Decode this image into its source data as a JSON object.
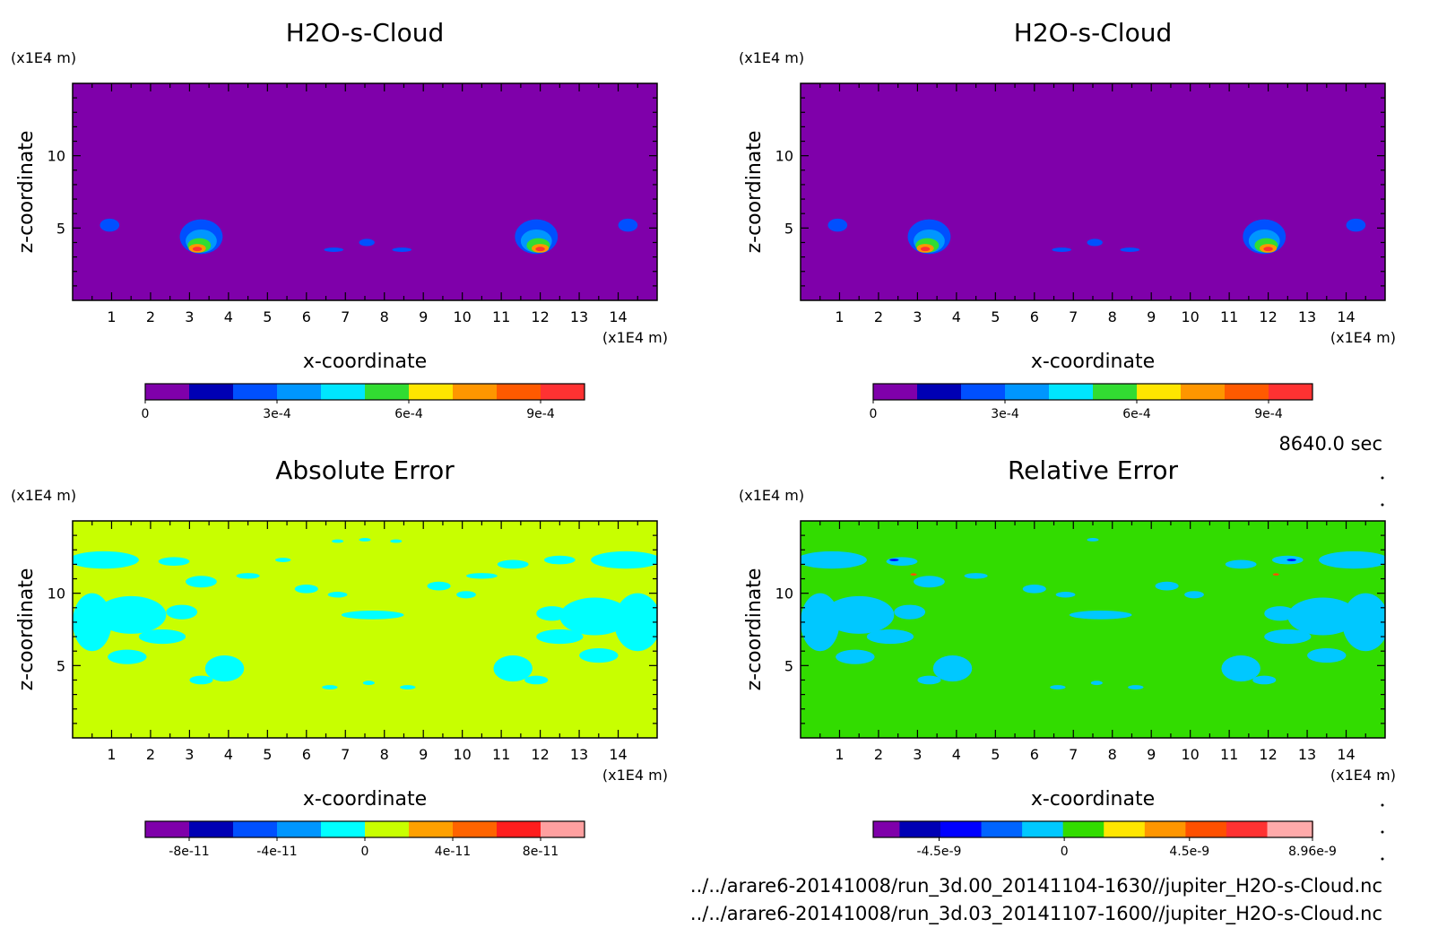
{
  "time_label": "8640.0 sec",
  "files": [
    "../../arare6-20141008/run_3d.00_20141104-1630//jupiter_H2O-s-Cloud.nc",
    "../../arare6-20141008/run_3d.03_20141107-1600//jupiter_H2O-s-Cloud.nc"
  ],
  "chart_data": [
    {
      "type": "heatmap",
      "title": "H2O-s-Cloud",
      "xlabel": "x-coordinate",
      "ylabel": "z-coordinate",
      "x_unit": "(x1E4 m)",
      "y_unit": "(x1E4 m)",
      "xlim": [
        0,
        15
      ],
      "ylim": [
        0,
        15
      ],
      "x_ticks": [
        1,
        2,
        3,
        4,
        5,
        6,
        7,
        8,
        9,
        10,
        11,
        12,
        13,
        14
      ],
      "y_ticks": [
        5,
        10
      ],
      "background_color": "#7f00aa",
      "colorbar": {
        "colors": [
          "#7f00aa",
          "#0000b4",
          "#0050ff",
          "#0096ff",
          "#00e6ff",
          "#32dc32",
          "#ffe600",
          "#ff9600",
          "#ff5a00",
          "#ff3232"
        ],
        "tick_labels": [
          "0",
          "3e-4",
          "6e-4",
          "9e-4"
        ],
        "tick_positions": [
          0,
          3,
          6,
          9
        ]
      },
      "features": [
        {
          "x": 0.95,
          "z": 5.2,
          "rx": 0.25,
          "rz": 0.45,
          "color": "#0050ff"
        },
        {
          "x": 14.25,
          "z": 5.2,
          "rx": 0.25,
          "rz": 0.45,
          "color": "#0050ff"
        },
        {
          "x": 6.7,
          "z": 3.5,
          "rx": 0.25,
          "rz": 0.15,
          "color": "#0050ff"
        },
        {
          "x": 7.55,
          "z": 4.0,
          "rx": 0.2,
          "rz": 0.25,
          "color": "#0050ff"
        },
        {
          "x": 8.45,
          "z": 3.5,
          "rx": 0.25,
          "rz": 0.15,
          "color": "#0050ff"
        },
        {
          "x": 3.3,
          "z": 4.4,
          "rx": 0.55,
          "rz": 1.2,
          "color": "#0050ff"
        },
        {
          "x": 3.3,
          "z": 4.1,
          "rx": 0.4,
          "rz": 0.8,
          "color": "#0096ff"
        },
        {
          "x": 3.25,
          "z": 3.8,
          "rx": 0.3,
          "rz": 0.5,
          "color": "#32dc32"
        },
        {
          "x": 3.2,
          "z": 3.6,
          "rx": 0.22,
          "rz": 0.3,
          "color": "#ff9600"
        },
        {
          "x": 3.2,
          "z": 3.55,
          "rx": 0.12,
          "rz": 0.15,
          "color": "#ff3232"
        },
        {
          "x": 11.9,
          "z": 4.4,
          "rx": 0.55,
          "rz": 1.2,
          "color": "#0050ff"
        },
        {
          "x": 11.9,
          "z": 4.1,
          "rx": 0.4,
          "rz": 0.8,
          "color": "#0096ff"
        },
        {
          "x": 11.95,
          "z": 3.8,
          "rx": 0.3,
          "rz": 0.5,
          "color": "#32dc32"
        },
        {
          "x": 12.0,
          "z": 3.6,
          "rx": 0.22,
          "rz": 0.3,
          "color": "#ff9600"
        },
        {
          "x": 12.0,
          "z": 3.55,
          "rx": 0.12,
          "rz": 0.15,
          "color": "#ff3232"
        }
      ]
    },
    {
      "type": "heatmap",
      "title": "H2O-s-Cloud",
      "xlabel": "x-coordinate",
      "ylabel": "z-coordinate",
      "x_unit": "(x1E4 m)",
      "y_unit": "(x1E4 m)",
      "xlim": [
        0,
        15
      ],
      "ylim": [
        0,
        15
      ],
      "x_ticks": [
        1,
        2,
        3,
        4,
        5,
        6,
        7,
        8,
        9,
        10,
        11,
        12,
        13,
        14
      ],
      "y_ticks": [
        5,
        10
      ],
      "background_color": "#7f00aa",
      "colorbar": {
        "colors": [
          "#7f00aa",
          "#0000b4",
          "#0050ff",
          "#0096ff",
          "#00e6ff",
          "#32dc32",
          "#ffe600",
          "#ff9600",
          "#ff5a00",
          "#ff3232"
        ],
        "tick_labels": [
          "0",
          "3e-4",
          "6e-4",
          "9e-4"
        ],
        "tick_positions": [
          0,
          3,
          6,
          9
        ]
      },
      "features": [
        {
          "x": 0.95,
          "z": 5.2,
          "rx": 0.25,
          "rz": 0.45,
          "color": "#0050ff"
        },
        {
          "x": 14.25,
          "z": 5.2,
          "rx": 0.25,
          "rz": 0.45,
          "color": "#0050ff"
        },
        {
          "x": 6.7,
          "z": 3.5,
          "rx": 0.25,
          "rz": 0.15,
          "color": "#0050ff"
        },
        {
          "x": 7.55,
          "z": 4.0,
          "rx": 0.2,
          "rz": 0.25,
          "color": "#0050ff"
        },
        {
          "x": 8.45,
          "z": 3.5,
          "rx": 0.25,
          "rz": 0.15,
          "color": "#0050ff"
        },
        {
          "x": 3.3,
          "z": 4.4,
          "rx": 0.55,
          "rz": 1.2,
          "color": "#0050ff"
        },
        {
          "x": 3.3,
          "z": 4.1,
          "rx": 0.4,
          "rz": 0.8,
          "color": "#0096ff"
        },
        {
          "x": 3.25,
          "z": 3.8,
          "rx": 0.3,
          "rz": 0.5,
          "color": "#32dc32"
        },
        {
          "x": 3.2,
          "z": 3.6,
          "rx": 0.22,
          "rz": 0.3,
          "color": "#ff9600"
        },
        {
          "x": 3.2,
          "z": 3.55,
          "rx": 0.12,
          "rz": 0.15,
          "color": "#ff3232"
        },
        {
          "x": 11.9,
          "z": 4.4,
          "rx": 0.55,
          "rz": 1.2,
          "color": "#0050ff"
        },
        {
          "x": 11.9,
          "z": 4.1,
          "rx": 0.4,
          "rz": 0.8,
          "color": "#0096ff"
        },
        {
          "x": 11.95,
          "z": 3.8,
          "rx": 0.3,
          "rz": 0.5,
          "color": "#32dc32"
        },
        {
          "x": 12.0,
          "z": 3.6,
          "rx": 0.22,
          "rz": 0.3,
          "color": "#ff9600"
        },
        {
          "x": 12.0,
          "z": 3.55,
          "rx": 0.12,
          "rz": 0.15,
          "color": "#ff3232"
        }
      ]
    },
    {
      "type": "heatmap",
      "title": "Absolute Error",
      "xlabel": "x-coordinate",
      "ylabel": "z-coordinate",
      "x_unit": "(x1E4 m)",
      "y_unit": "(x1E4 m)",
      "xlim": [
        0,
        15
      ],
      "ylim": [
        0,
        15
      ],
      "x_ticks": [
        1,
        2,
        3,
        4,
        5,
        6,
        7,
        8,
        9,
        10,
        11,
        12,
        13,
        14
      ],
      "y_ticks": [
        5,
        10
      ],
      "background_color": "#c8ff00",
      "colorbar": {
        "colors": [
          "#7f00aa",
          "#0000b4",
          "#0050ff",
          "#0096ff",
          "#00ffff",
          "#c8ff00",
          "#ffa000",
          "#ff6400",
          "#ff1e1e",
          "#ffa0a0"
        ],
        "tick_labels": [
          "-8e-11",
          "-4e-11",
          "0",
          "4e-11",
          "8e-11"
        ],
        "tick_positions": [
          1,
          3,
          5,
          7,
          9
        ]
      },
      "features": [
        {
          "x": 0.8,
          "z": 12.3,
          "rx": 0.9,
          "rz": 0.6,
          "color": "#00ffff"
        },
        {
          "x": 0.5,
          "z": 8.0,
          "rx": 0.5,
          "rz": 2.0,
          "color": "#00ffff"
        },
        {
          "x": 1.5,
          "z": 8.5,
          "rx": 0.9,
          "rz": 1.3,
          "color": "#00ffff"
        },
        {
          "x": 2.8,
          "z": 8.7,
          "rx": 0.4,
          "rz": 0.5,
          "color": "#00ffff"
        },
        {
          "x": 2.3,
          "z": 7.0,
          "rx": 0.6,
          "rz": 0.5,
          "color": "#00ffff"
        },
        {
          "x": 1.4,
          "z": 5.6,
          "rx": 0.5,
          "rz": 0.5,
          "color": "#00ffff"
        },
        {
          "x": 3.9,
          "z": 4.8,
          "rx": 0.5,
          "rz": 0.9,
          "color": "#00ffff"
        },
        {
          "x": 3.3,
          "z": 4.0,
          "rx": 0.3,
          "rz": 0.3,
          "color": "#00ffff"
        },
        {
          "x": 3.3,
          "z": 10.8,
          "rx": 0.4,
          "rz": 0.4,
          "color": "#00ffff"
        },
        {
          "x": 4.5,
          "z": 11.2,
          "rx": 0.3,
          "rz": 0.2,
          "color": "#00ffff"
        },
        {
          "x": 2.6,
          "z": 12.2,
          "rx": 0.4,
          "rz": 0.3,
          "color": "#00ffff"
        },
        {
          "x": 5.4,
          "z": 12.3,
          "rx": 0.2,
          "rz": 0.15,
          "color": "#00ffff"
        },
        {
          "x": 6.0,
          "z": 10.3,
          "rx": 0.3,
          "rz": 0.3,
          "color": "#00ffff"
        },
        {
          "x": 6.8,
          "z": 9.9,
          "rx": 0.25,
          "rz": 0.2,
          "color": "#00ffff"
        },
        {
          "x": 7.7,
          "z": 8.5,
          "rx": 0.8,
          "rz": 0.3,
          "color": "#00ffff"
        },
        {
          "x": 6.6,
          "z": 3.5,
          "rx": 0.2,
          "rz": 0.15,
          "color": "#00ffff"
        },
        {
          "x": 7.6,
          "z": 3.8,
          "rx": 0.15,
          "rz": 0.15,
          "color": "#00ffff"
        },
        {
          "x": 8.6,
          "z": 3.5,
          "rx": 0.2,
          "rz": 0.15,
          "color": "#00ffff"
        },
        {
          "x": 6.8,
          "z": 13.6,
          "rx": 0.15,
          "rz": 0.12,
          "color": "#00ffff"
        },
        {
          "x": 7.5,
          "z": 13.7,
          "rx": 0.15,
          "rz": 0.12,
          "color": "#00ffff"
        },
        {
          "x": 8.3,
          "z": 13.6,
          "rx": 0.15,
          "rz": 0.12,
          "color": "#00ffff"
        },
        {
          "x": 9.4,
          "z": 10.5,
          "rx": 0.3,
          "rz": 0.3,
          "color": "#00ffff"
        },
        {
          "x": 10.1,
          "z": 9.9,
          "rx": 0.25,
          "rz": 0.25,
          "color": "#00ffff"
        },
        {
          "x": 11.3,
          "z": 12.0,
          "rx": 0.4,
          "rz": 0.3,
          "color": "#00ffff"
        },
        {
          "x": 10.5,
          "z": 11.2,
          "rx": 0.4,
          "rz": 0.2,
          "color": "#00ffff"
        },
        {
          "x": 12.5,
          "z": 12.3,
          "rx": 0.4,
          "rz": 0.3,
          "color": "#00ffff"
        },
        {
          "x": 14.2,
          "z": 12.3,
          "rx": 0.9,
          "rz": 0.6,
          "color": "#00ffff"
        },
        {
          "x": 14.5,
          "z": 8.0,
          "rx": 0.6,
          "rz": 2.0,
          "color": "#00ffff"
        },
        {
          "x": 13.4,
          "z": 8.4,
          "rx": 0.9,
          "rz": 1.3,
          "color": "#00ffff"
        },
        {
          "x": 12.3,
          "z": 8.6,
          "rx": 0.4,
          "rz": 0.5,
          "color": "#00ffff"
        },
        {
          "x": 12.5,
          "z": 7.0,
          "rx": 0.6,
          "rz": 0.5,
          "color": "#00ffff"
        },
        {
          "x": 13.5,
          "z": 5.7,
          "rx": 0.5,
          "rz": 0.5,
          "color": "#00ffff"
        },
        {
          "x": 11.3,
          "z": 4.8,
          "rx": 0.5,
          "rz": 0.9,
          "color": "#00ffff"
        },
        {
          "x": 11.9,
          "z": 4.0,
          "rx": 0.3,
          "rz": 0.3,
          "color": "#00ffff"
        }
      ]
    },
    {
      "type": "heatmap",
      "title": "Relative Error",
      "xlabel": "x-coordinate",
      "ylabel": "z-coordinate",
      "x_unit": "(x1E4 m)",
      "y_unit": "(x1E4 m)",
      "xlim": [
        0,
        15
      ],
      "ylim": [
        0,
        15
      ],
      "x_ticks": [
        1,
        2,
        3,
        4,
        5,
        6,
        7,
        8,
        9,
        10,
        11,
        12,
        13,
        14
      ],
      "y_ticks": [
        5,
        10
      ],
      "background_color": "#32dc00",
      "colorbar": {
        "colors": [
          "#7f00aa",
          "#0000b4",
          "#0000ff",
          "#0064ff",
          "#00c8ff",
          "#32dc00",
          "#ffe600",
          "#ff9600",
          "#ff5000",
          "#ff3232",
          "#ffaaaa"
        ],
        "segment_fractions": [
          0.06,
          0.093,
          0.093,
          0.093,
          0.093,
          0.093,
          0.093,
          0.093,
          0.093,
          0.093,
          0.104
        ],
        "tick_labels": [
          "-4.5e-9",
          "0",
          "4.5e-9",
          "8.96e-9"
        ],
        "tick_positions": [
          0.15,
          0.435,
          0.72,
          1.0
        ]
      },
      "features": [
        {
          "x": 0.8,
          "z": 12.3,
          "rx": 0.9,
          "rz": 0.6,
          "color": "#00c8ff"
        },
        {
          "x": 0.5,
          "z": 8.0,
          "rx": 0.5,
          "rz": 2.0,
          "color": "#00c8ff"
        },
        {
          "x": 1.5,
          "z": 8.5,
          "rx": 0.9,
          "rz": 1.3,
          "color": "#00c8ff"
        },
        {
          "x": 2.8,
          "z": 8.7,
          "rx": 0.4,
          "rz": 0.5,
          "color": "#00c8ff"
        },
        {
          "x": 2.3,
          "z": 7.0,
          "rx": 0.6,
          "rz": 0.5,
          "color": "#00c8ff"
        },
        {
          "x": 1.4,
          "z": 5.6,
          "rx": 0.5,
          "rz": 0.5,
          "color": "#00c8ff"
        },
        {
          "x": 3.9,
          "z": 4.8,
          "rx": 0.5,
          "rz": 0.9,
          "color": "#00c8ff"
        },
        {
          "x": 3.3,
          "z": 4.0,
          "rx": 0.3,
          "rz": 0.3,
          "color": "#00c8ff"
        },
        {
          "x": 3.3,
          "z": 10.8,
          "rx": 0.4,
          "rz": 0.4,
          "color": "#00c8ff"
        },
        {
          "x": 4.5,
          "z": 11.2,
          "rx": 0.3,
          "rz": 0.2,
          "color": "#00c8ff"
        },
        {
          "x": 2.6,
          "z": 12.2,
          "rx": 0.4,
          "rz": 0.3,
          "color": "#00c8ff"
        },
        {
          "x": 6.0,
          "z": 10.3,
          "rx": 0.3,
          "rz": 0.3,
          "color": "#00c8ff"
        },
        {
          "x": 6.8,
          "z": 9.9,
          "rx": 0.25,
          "rz": 0.2,
          "color": "#00c8ff"
        },
        {
          "x": 7.7,
          "z": 8.5,
          "rx": 0.8,
          "rz": 0.3,
          "color": "#00c8ff"
        },
        {
          "x": 6.6,
          "z": 3.5,
          "rx": 0.2,
          "rz": 0.15,
          "color": "#00c8ff"
        },
        {
          "x": 7.6,
          "z": 3.8,
          "rx": 0.15,
          "rz": 0.15,
          "color": "#00c8ff"
        },
        {
          "x": 8.6,
          "z": 3.5,
          "rx": 0.2,
          "rz": 0.15,
          "color": "#00c8ff"
        },
        {
          "x": 7.5,
          "z": 13.7,
          "rx": 0.15,
          "rz": 0.12,
          "color": "#00c8ff"
        },
        {
          "x": 9.4,
          "z": 10.5,
          "rx": 0.3,
          "rz": 0.3,
          "color": "#00c8ff"
        },
        {
          "x": 10.1,
          "z": 9.9,
          "rx": 0.25,
          "rz": 0.25,
          "color": "#00c8ff"
        },
        {
          "x": 11.3,
          "z": 12.0,
          "rx": 0.4,
          "rz": 0.3,
          "color": "#00c8ff"
        },
        {
          "x": 12.5,
          "z": 12.3,
          "rx": 0.4,
          "rz": 0.3,
          "color": "#00c8ff"
        },
        {
          "x": 14.2,
          "z": 12.3,
          "rx": 0.9,
          "rz": 0.6,
          "color": "#00c8ff"
        },
        {
          "x": 14.5,
          "z": 8.0,
          "rx": 0.6,
          "rz": 2.0,
          "color": "#00c8ff"
        },
        {
          "x": 13.4,
          "z": 8.4,
          "rx": 0.9,
          "rz": 1.3,
          "color": "#00c8ff"
        },
        {
          "x": 12.3,
          "z": 8.6,
          "rx": 0.4,
          "rz": 0.5,
          "color": "#00c8ff"
        },
        {
          "x": 12.5,
          "z": 7.0,
          "rx": 0.6,
          "rz": 0.5,
          "color": "#00c8ff"
        },
        {
          "x": 13.5,
          "z": 5.7,
          "rx": 0.5,
          "rz": 0.5,
          "color": "#00c8ff"
        },
        {
          "x": 11.3,
          "z": 4.8,
          "rx": 0.5,
          "rz": 0.9,
          "color": "#00c8ff"
        },
        {
          "x": 11.9,
          "z": 4.0,
          "rx": 0.3,
          "rz": 0.3,
          "color": "#00c8ff"
        },
        {
          "x": 2.4,
          "z": 12.3,
          "rx": 0.12,
          "rz": 0.08,
          "color": "#0000ff"
        },
        {
          "x": 12.6,
          "z": 12.3,
          "rx": 0.12,
          "rz": 0.08,
          "color": "#0000ff"
        },
        {
          "x": 2.9,
          "z": 11.3,
          "rx": 0.08,
          "rz": 0.08,
          "color": "#ff5000"
        },
        {
          "x": 12.2,
          "z": 11.3,
          "rx": 0.08,
          "rz": 0.08,
          "color": "#ff5000"
        }
      ]
    }
  ]
}
